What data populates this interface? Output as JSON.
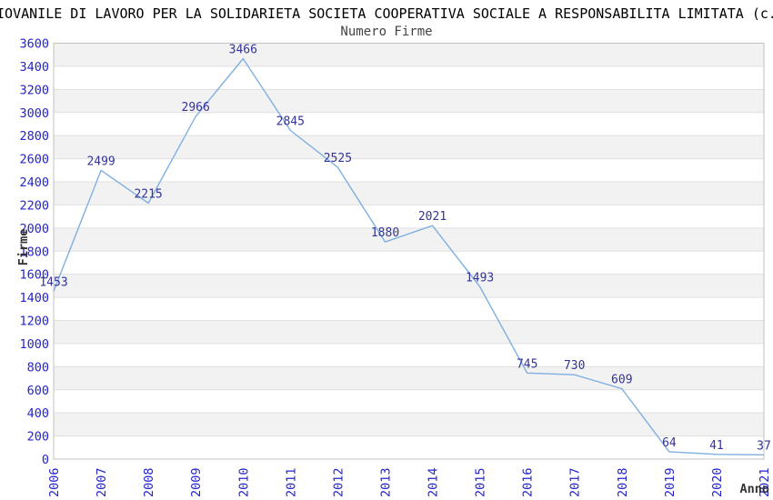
{
  "chart_data": {
    "type": "line",
    "title": "IOVANILE DI LAVORO PER LA SOLIDARIETA SOCIETA COOPERATIVA SOCIALE A RESPONSABILITA LIMITATA (c.",
    "subtitle": "Numero Firme",
    "xlabel": "Anno",
    "ylabel": "Firme",
    "categories": [
      "2006",
      "2007",
      "2008",
      "2009",
      "2010",
      "2011",
      "2012",
      "2013",
      "2014",
      "2015",
      "2016",
      "2017",
      "2018",
      "2019",
      "2020",
      "2021"
    ],
    "values": [
      1453,
      2499,
      2215,
      2966,
      3466,
      2845,
      2525,
      1880,
      2021,
      1493,
      745,
      730,
      609,
      64,
      41,
      37
    ],
    "ylim": [
      0,
      3600
    ],
    "ytick_step": 200,
    "grid": "horizontal gridlines with alternating gray bands",
    "legend": "none",
    "colors": {
      "line": "#7fafe0",
      "tick_label": "#2323cc",
      "data_label": "#333399",
      "band": "#f2f2f2",
      "gridline": "#e0e0e0",
      "plot_border": "#c2c2c2",
      "title": "#000000",
      "subtitle": "#444444",
      "axis_title": "#333333",
      "background": "#ffffff"
    }
  }
}
